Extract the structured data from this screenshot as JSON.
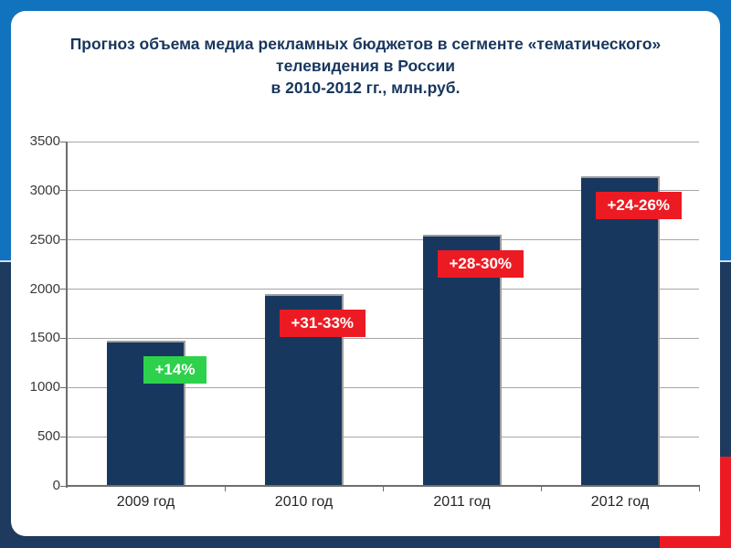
{
  "slide": {
    "title_lines": [
      "Прогноз объема медиа рекламных бюджетов в сегменте «тематического»",
      "телевидения в России",
      "в 2010-2012 гг., млн.руб."
    ]
  },
  "theme": {
    "frame_blue": "#1173be",
    "frame_navy": "#1e3a5e",
    "frame_red": "#ec1b23",
    "bar_color": "#17375e",
    "title_color": "#17365d",
    "grid_color": "#a6a6a6",
    "axis_color": "#6e6e6e",
    "green_badge": "#2ed14c",
    "red_badge": "#ec1b23"
  },
  "chart_data": {
    "type": "bar",
    "title": "Прогноз объема медиа рекламных бюджетов в сегменте «тематического» телевидения в России в 2010-2012 гг., млн.руб.",
    "categories": [
      "2009 год",
      "2010 год",
      "2011 год",
      "2012 год"
    ],
    "values": [
      1480,
      1950,
      2550,
      3150
    ],
    "growth_labels": [
      {
        "text": "+14%",
        "bg": "#2ed14c"
      },
      {
        "text": "+31-33%",
        "bg": "#ec1b23"
      },
      {
        "text": "+28-30%",
        "bg": "#ec1b23"
      },
      {
        "text": "+24-26%",
        "bg": "#ec1b23"
      }
    ],
    "xlabel": "",
    "ylabel": "",
    "ylim": [
      0,
      3500
    ],
    "ytick_step": 500,
    "grid": true,
    "legend": false
  }
}
